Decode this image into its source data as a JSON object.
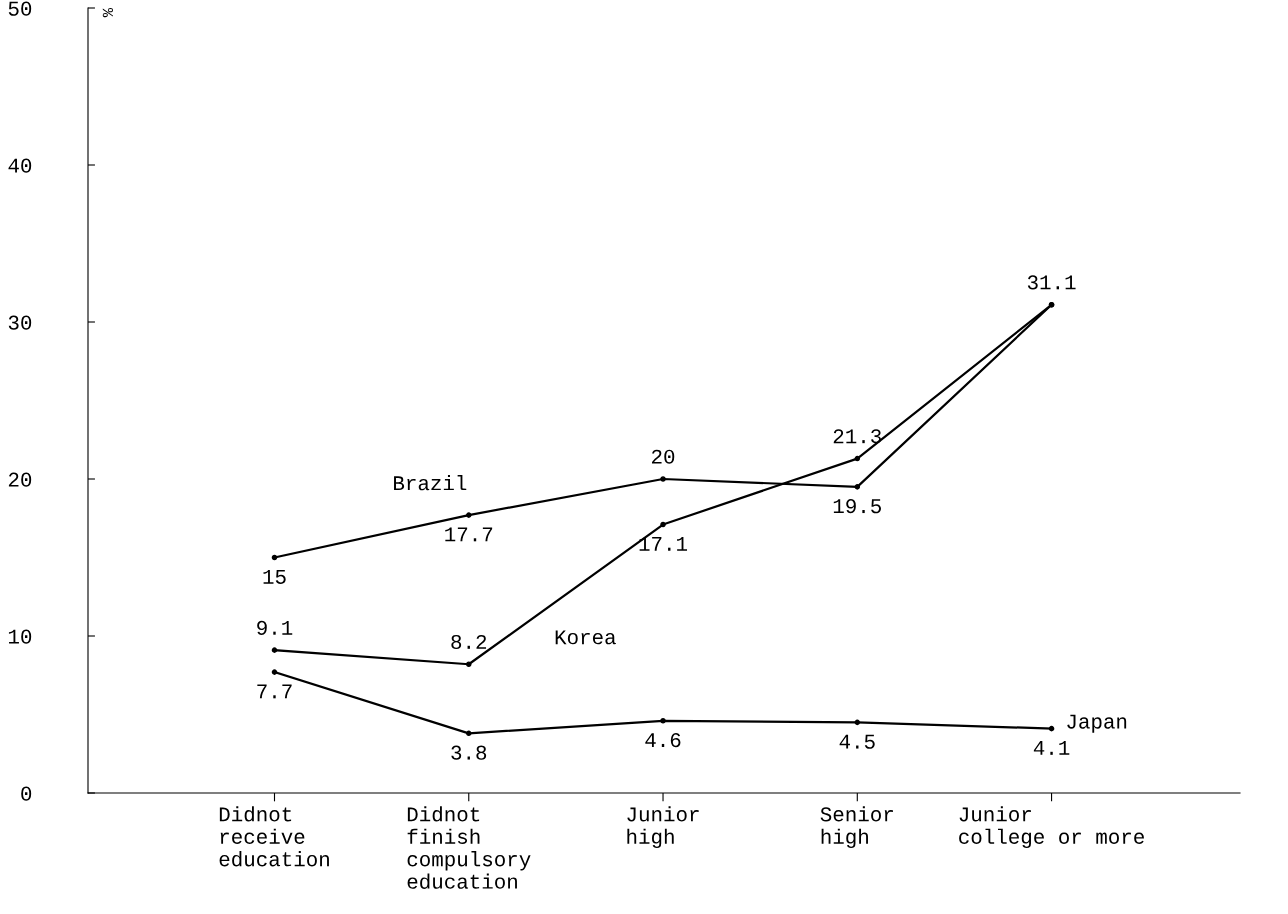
{
  "chart_data": {
    "type": "line",
    "ylabel": "%",
    "categories": [
      "Didnot\nreceive\neducation",
      "Didnot\nfinish\ncompulsory\neducation",
      "Junior\nhigh",
      "Senior\nhigh",
      "Junior\ncollege or more"
    ],
    "series": [
      {
        "name": "Brazil",
        "color": "#000000",
        "values": [
          15,
          17.7,
          20,
          19.5,
          31.1
        ],
        "value_labels": [
          "15",
          "17.7",
          "20",
          "19.5",
          "31.1"
        ]
      },
      {
        "name": "Korea",
        "color": "#000000",
        "values": [
          9.1,
          8.2,
          17.1,
          21.3,
          31.1
        ],
        "value_labels": [
          "9.1",
          "8.2",
          "17.1",
          "21.3",
          null
        ]
      },
      {
        "name": "Japan",
        "color": "#000000",
        "values": [
          7.7,
          3.8,
          4.6,
          4.5,
          4.1
        ],
        "value_labels": [
          "7.7",
          "3.8",
          "4.6",
          "4.5",
          "4.1"
        ]
      }
    ],
    "ylim": [
      0,
      50
    ],
    "yticks": [
      0,
      10,
      20,
      30,
      40,
      50
    ],
    "marker": "circle",
    "line_style": "solid",
    "grid": false
  }
}
